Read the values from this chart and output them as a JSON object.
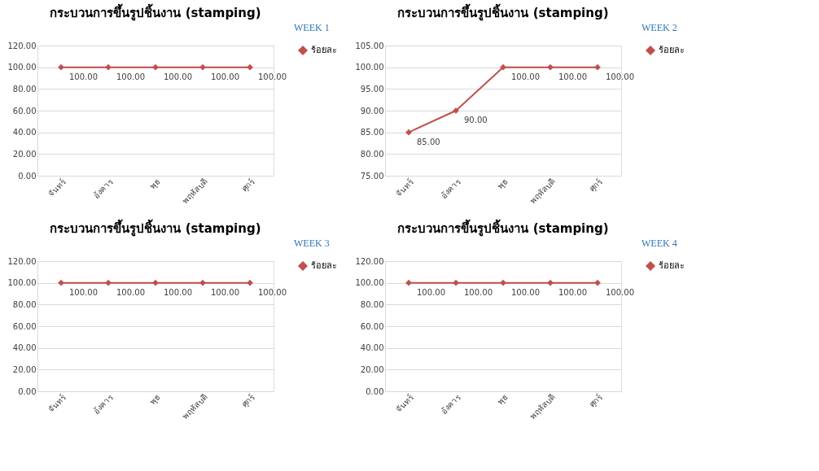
{
  "chart_data": [
    {
      "type": "line",
      "title": "กระบวนการขึ้นรูปชิ้นงาน (stamping)",
      "annotations": [
        "WEEK 1"
      ],
      "categories": [
        "จันทร์",
        "อังคาร",
        "พุธ",
        "พฤหัสบดี",
        "ศุกร์"
      ],
      "series": [
        {
          "name": "ร้อยละ",
          "color": "#c0504d",
          "values": [
            100,
            100,
            100,
            100,
            100
          ],
          "value_labels": [
            "100.00",
            "100.00",
            "100.00",
            "100.00",
            "100.00"
          ]
        }
      ],
      "ylim": [
        0,
        120
      ],
      "yticks": [
        {
          "value": 0,
          "label": "0.00"
        },
        {
          "value": 20,
          "label": "20.00"
        },
        {
          "value": 40,
          "label": "40.00"
        },
        {
          "value": 60,
          "label": "60.00"
        },
        {
          "value": 80,
          "label": "80.00"
        },
        {
          "value": 100,
          "label": "100.00"
        },
        {
          "value": 120,
          "label": "120.00"
        }
      ],
      "grid": "y",
      "legend": "right",
      "marker": "diamond",
      "line_style": "solid"
    },
    {
      "type": "line",
      "title": "กระบวนการขึ้นรูปชิ้นงาน (stamping)",
      "annotations": [
        "WEEK 2"
      ],
      "categories": [
        "จันทร์",
        "อังคาร",
        "พุธ",
        "พฤหัสบดี",
        "ศุกร์"
      ],
      "series": [
        {
          "name": "ร้อยละ",
          "color": "#c0504d",
          "values": [
            85,
            90,
            100,
            100,
            100
          ],
          "value_labels": [
            "85.00",
            "90.00",
            "100.00",
            "100.00",
            "100.00"
          ]
        }
      ],
      "ylim": [
        75,
        105
      ],
      "yticks": [
        {
          "value": 75,
          "label": "75.00"
        },
        {
          "value": 80,
          "label": "80.00"
        },
        {
          "value": 85,
          "label": "85.00"
        },
        {
          "value": 90,
          "label": "90.00"
        },
        {
          "value": 95,
          "label": "95.00"
        },
        {
          "value": 100,
          "label": "100.00"
        },
        {
          "value": 105,
          "label": "105.00"
        }
      ],
      "grid": "y",
      "legend": "right",
      "marker": "diamond",
      "line_style": "solid"
    },
    {
      "type": "line",
      "title": "กระบวนการขึ้นรูปชิ้นงาน (stamping)",
      "annotations": [
        "WEEK 3"
      ],
      "categories": [
        "จันทร์",
        "อังคาร",
        "พุธ",
        "พฤหัสบดี",
        "ศุกร์"
      ],
      "series": [
        {
          "name": "ร้อยละ",
          "color": "#c0504d",
          "values": [
            100,
            100,
            100,
            100,
            100
          ],
          "value_labels": [
            "100.00",
            "100.00",
            "100.00",
            "100.00",
            "100.00"
          ]
        }
      ],
      "ylim": [
        0,
        120
      ],
      "yticks": [
        {
          "value": 0,
          "label": "0.00"
        },
        {
          "value": 20,
          "label": "20.00"
        },
        {
          "value": 40,
          "label": "40.00"
        },
        {
          "value": 60,
          "label": "60.00"
        },
        {
          "value": 80,
          "label": "80.00"
        },
        {
          "value": 100,
          "label": "100.00"
        },
        {
          "value": 120,
          "label": "120.00"
        }
      ],
      "grid": "y",
      "legend": "right",
      "marker": "diamond",
      "line_style": "solid"
    },
    {
      "type": "line",
      "title": "กระบวนการขึ้นรูปชิ้นงาน (stamping)",
      "annotations": [
        "WEEK 4"
      ],
      "categories": [
        "จันทร์",
        "อังคาร",
        "พุธ",
        "พฤหัสบดี",
        "ศุกร์"
      ],
      "series": [
        {
          "name": "ร้อยละ",
          "color": "#c0504d",
          "values": [
            100,
            100,
            100,
            100,
            100
          ],
          "value_labels": [
            "100.00",
            "100.00",
            "100.00",
            "100.00",
            "100.00"
          ]
        }
      ],
      "ylim": [
        0,
        120
      ],
      "yticks": [
        {
          "value": 0,
          "label": "0.00"
        },
        {
          "value": 20,
          "label": "20.00"
        },
        {
          "value": 40,
          "label": "40.00"
        },
        {
          "value": 60,
          "label": "60.00"
        },
        {
          "value": 80,
          "label": "80.00"
        },
        {
          "value": 100,
          "label": "100.00"
        },
        {
          "value": 120,
          "label": "120.00"
        }
      ],
      "grid": "y",
      "legend": "right",
      "marker": "diamond",
      "line_style": "solid"
    }
  ]
}
